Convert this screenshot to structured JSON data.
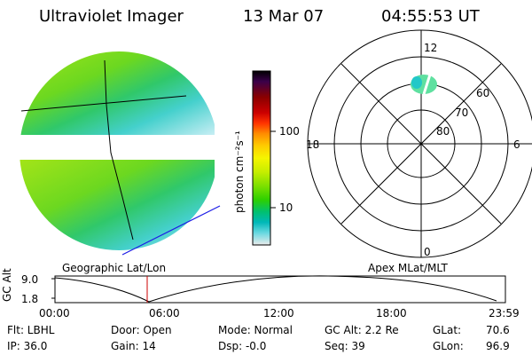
{
  "header": {
    "instrument": "Ultraviolet Imager",
    "date": "13 Mar 07",
    "time": "04:55:53 UT"
  },
  "image_panel": {
    "label": "Geographic Lat/Lon"
  },
  "colorbar": {
    "unit_label": "photon cm⁻²s⁻¹",
    "ticks": [
      "100",
      "10"
    ],
    "scale": "log",
    "colors": [
      "#000000",
      "#3a004a",
      "#8a0000",
      "#cc0000",
      "#ff3300",
      "#ff8c00",
      "#ffcc00",
      "#f5f500",
      "#c6ee00",
      "#7ee000",
      "#2ed000",
      "#00c070",
      "#00b8b8",
      "#66d8e0",
      "#c0ecf4",
      "#ececec"
    ]
  },
  "polar_plot": {
    "label": "Apex MLat/MLT",
    "mlt_labels": {
      "top": "12",
      "bottom": "0",
      "left": "18",
      "right": "6"
    },
    "lat_labels": [
      "60",
      "70",
      "80"
    ]
  },
  "timeline": {
    "ylabel": "GC Alt",
    "y_top": "9.0",
    "y_bottom": "1.8",
    "x_ticks": [
      "00:00",
      "06:00",
      "12:00",
      "18:00",
      "23:59"
    ],
    "current_time_marker": "04:55:53"
  },
  "info": {
    "flt": "Flt: LBHL",
    "ip": "IP: 36.0",
    "door": "Door: Open",
    "gain": "Gain: 14",
    "mode": "Mode: Normal",
    "dsp": "Dsp:   -0.0",
    "gc_alt": "GC Alt: 2.2 Re",
    "seq": "Seq: 39",
    "glat_label": "GLat:",
    "glat_value": "70.6",
    "glon_label": "GLon:",
    "glon_value": "96.9"
  }
}
